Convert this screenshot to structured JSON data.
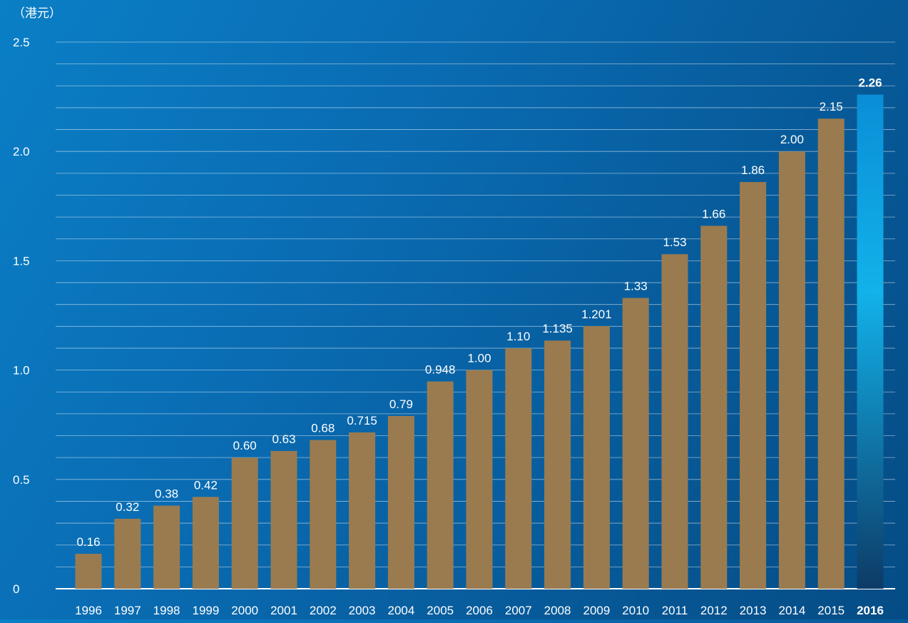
{
  "chart_data": {
    "type": "bar",
    "unit_label": "（港元）",
    "categories": [
      "1996",
      "1997",
      "1998",
      "1999",
      "2000",
      "2001",
      "2002",
      "2003",
      "2004",
      "2005",
      "2006",
      "2007",
      "2008",
      "2009",
      "2010",
      "2011",
      "2012",
      "2013",
      "2014",
      "2015",
      "2016"
    ],
    "values": [
      0.16,
      0.32,
      0.38,
      0.42,
      0.6,
      0.63,
      0.68,
      0.715,
      0.79,
      0.948,
      1.0,
      1.1,
      1.135,
      1.201,
      1.33,
      1.53,
      1.66,
      1.86,
      2.0,
      2.15,
      2.26
    ],
    "value_labels": [
      "0.16",
      "0.32",
      "0.38",
      "0.42",
      "0.60",
      "0.63",
      "0.68",
      "0.715",
      "0.79",
      "0.948",
      "1.00",
      "1.10",
      "1.135",
      "1.201",
      "1.33",
      "1.53",
      "1.66",
      "1.86",
      "2.00",
      "2.15",
      "2.26"
    ],
    "highlight_index": 20,
    "ylim": [
      0,
      2.5
    ],
    "y_ticks": [
      {
        "value": 0,
        "label": "0"
      },
      {
        "value": 0.5,
        "label": "0.5"
      },
      {
        "value": 1.0,
        "label": "1.0"
      },
      {
        "value": 1.5,
        "label": "1.5"
      },
      {
        "value": 2.0,
        "label": "2.0"
      },
      {
        "value": 2.5,
        "label": "2.5"
      }
    ],
    "minor_grid_step": 0.1,
    "grid": true,
    "colors": {
      "bar": "#9a7b4f",
      "highlight_top": "#0a8ed6",
      "highlight_mid": "#12b2ea",
      "highlight_bottom": "#0d3b66",
      "grid": "#ffffff",
      "text": "#ffffff"
    }
  }
}
